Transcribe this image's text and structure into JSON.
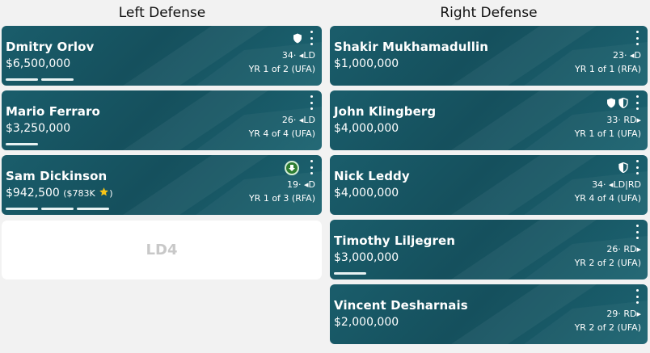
{
  "columns": {
    "left": {
      "title": "Left Defense"
    },
    "right": {
      "title": "Right Defense"
    }
  },
  "left_cards": [
    {
      "name": "Dmitry Orlov",
      "salary": "$6,500,000",
      "age_pos": "34· ◂LD",
      "contract": "YR 1 of 2 (UFA)",
      "icons": [
        "shield-filled-icon"
      ],
      "bars": 2
    },
    {
      "name": "Mario Ferraro",
      "salary": "$3,250,000",
      "age_pos": "26· ◂LD",
      "contract": "YR 4 of 4 (UFA)",
      "icons": [],
      "bars": 1
    },
    {
      "name": "Sam Dickinson",
      "salary": "$942,500",
      "salary_sub": "($783K",
      "age_pos": "19· ◂D",
      "contract": "YR 1 of 3 (RFA)",
      "icons": [
        "star-icon",
        "down-arrow-badge-icon"
      ],
      "bars": 3
    }
  ],
  "left_empty": {
    "label": "LD4"
  },
  "right_cards": [
    {
      "name": "Shakir Mukhamadullin",
      "salary": "$1,000,000",
      "age_pos": "23· ◂D",
      "contract": "YR 1 of 1 (RFA)",
      "icons": [],
      "bars": 0
    },
    {
      "name": "John Klingberg",
      "salary": "$4,000,000",
      "age_pos": "33· RD▸",
      "contract": "YR 1 of 1 (UFA)",
      "icons": [
        "shield-filled-icon",
        "shield-half-icon"
      ],
      "bars": 0
    },
    {
      "name": "Nick Leddy",
      "salary": "$4,000,000",
      "age_pos": "34· ◂LD|RD",
      "contract": "YR 4 of 4 (UFA)",
      "icons": [
        "shield-half-icon"
      ],
      "bars": 0
    },
    {
      "name": "Timothy Liljegren",
      "salary": "$3,000,000",
      "age_pos": "26· RD▸",
      "contract": "YR 2 of 2 (UFA)",
      "icons": [],
      "bars": 1
    },
    {
      "name": "Vincent Desharnais",
      "salary": "$2,000,000",
      "age_pos": "29· RD▸",
      "contract": "YR 2 of 2 (UFA)",
      "icons": [],
      "bars": 0
    }
  ],
  "colors": {
    "card_bg": "#1a5d6b",
    "star": "#f5c518",
    "badge_green": "#2e7d32"
  }
}
